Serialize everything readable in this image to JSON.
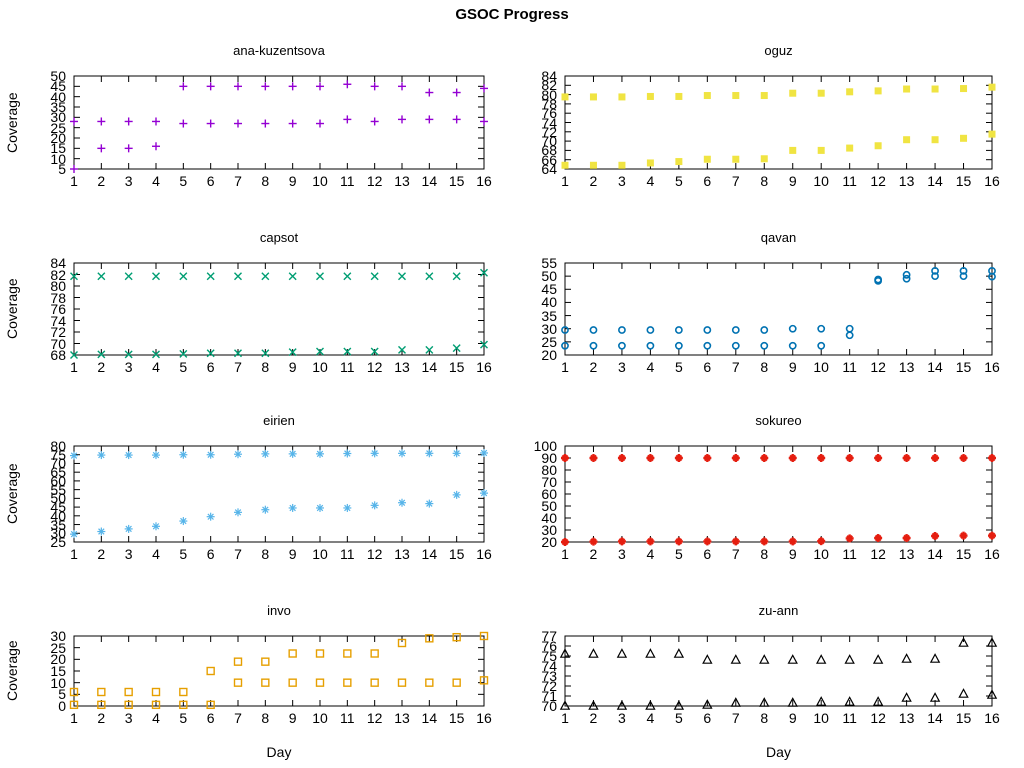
{
  "title": "GSOC Progress",
  "axis": {
    "xlabel": "Day",
    "ylabel": "Coverage"
  },
  "chart_data": [
    {
      "type": "scatter",
      "title": "ana-kuzentsova",
      "marker": "plus",
      "color": "#9400D3",
      "xlabel": "",
      "ylabel": "Coverage",
      "xlim": [
        1,
        16
      ],
      "ylim": [
        5,
        50
      ],
      "xticks": [
        1,
        2,
        3,
        4,
        5,
        6,
        7,
        8,
        9,
        10,
        11,
        12,
        13,
        14,
        15,
        16
      ],
      "yticks": [
        5,
        10,
        15,
        20,
        25,
        30,
        35,
        40,
        45,
        50
      ],
      "x": [
        1,
        2,
        3,
        4,
        5,
        6,
        7,
        8,
        9,
        10,
        11,
        12,
        13,
        14,
        15,
        16
      ],
      "series": [
        [
          5,
          15,
          15,
          16,
          45,
          45,
          45,
          45,
          45,
          45,
          46,
          45,
          45,
          42,
          42,
          44
        ],
        [
          28,
          28,
          28,
          28,
          27,
          27,
          27,
          27,
          27,
          27,
          29,
          28,
          29,
          29,
          29,
          28
        ]
      ],
      "grid": false,
      "legend": "none"
    },
    {
      "type": "scatter",
      "title": "oguz",
      "marker": "square-filled",
      "color": "#F0E442",
      "xlabel": "",
      "ylabel": "",
      "xlim": [
        1,
        16
      ],
      "ylim": [
        64,
        84
      ],
      "xticks": [
        1,
        2,
        3,
        4,
        5,
        6,
        7,
        8,
        9,
        10,
        11,
        12,
        13,
        14,
        15,
        16
      ],
      "yticks": [
        64,
        66,
        68,
        70,
        72,
        74,
        76,
        78,
        80,
        82,
        84
      ],
      "x": [
        1,
        2,
        3,
        4,
        5,
        6,
        7,
        8,
        9,
        10,
        11,
        12,
        13,
        14,
        15,
        16
      ],
      "series": [
        [
          79.5,
          79.5,
          79.5,
          79.6,
          79.6,
          79.8,
          79.8,
          79.8,
          80.3,
          80.3,
          80.6,
          80.8,
          81.2,
          81.2,
          81.3,
          81.6
        ],
        [
          64.8,
          64.8,
          64.8,
          65.3,
          65.6,
          66.1,
          66.1,
          66.2,
          68,
          68,
          68.5,
          69,
          70.3,
          70.3,
          70.6,
          71.5
        ]
      ],
      "grid": false,
      "legend": "none"
    },
    {
      "type": "scatter",
      "title": "capsot",
      "marker": "cross",
      "color": "#009E73",
      "xlabel": "",
      "ylabel": "Coverage",
      "xlim": [
        1,
        16
      ],
      "ylim": [
        68,
        84
      ],
      "xticks": [
        1,
        2,
        3,
        4,
        5,
        6,
        7,
        8,
        9,
        10,
        11,
        12,
        13,
        14,
        15,
        16
      ],
      "yticks": [
        68,
        70,
        72,
        74,
        76,
        78,
        80,
        82,
        84
      ],
      "x": [
        1,
        2,
        3,
        4,
        5,
        6,
        7,
        8,
        9,
        10,
        11,
        12,
        13,
        14,
        15,
        16
      ],
      "series": [
        [
          81.7,
          81.7,
          81.7,
          81.7,
          81.7,
          81.7,
          81.7,
          81.7,
          81.7,
          81.7,
          81.7,
          81.7,
          81.7,
          81.7,
          81.7,
          82.3
        ],
        [
          68,
          68.1,
          68.1,
          68.1,
          68.2,
          68.3,
          68.3,
          68.3,
          68.5,
          68.6,
          68.6,
          68.6,
          68.9,
          68.9,
          69.2,
          69.8
        ]
      ],
      "grid": false,
      "legend": "none"
    },
    {
      "type": "scatter",
      "title": "qavan",
      "marker": "circle-open",
      "color": "#0072B2",
      "xlabel": "",
      "ylabel": "",
      "xlim": [
        1,
        16
      ],
      "ylim": [
        20,
        55
      ],
      "xticks": [
        1,
        2,
        3,
        4,
        5,
        6,
        7,
        8,
        9,
        10,
        11,
        12,
        13,
        14,
        15,
        16
      ],
      "yticks": [
        20,
        25,
        30,
        35,
        40,
        45,
        50,
        55
      ],
      "x": [
        1,
        2,
        3,
        4,
        5,
        6,
        7,
        8,
        9,
        10,
        11,
        12,
        13,
        14,
        15,
        16
      ],
      "series": [
        [
          29.5,
          29.5,
          29.5,
          29.5,
          29.5,
          29.5,
          29.5,
          29.5,
          30,
          30,
          30,
          48.7,
          50.5,
          52,
          52,
          52
        ],
        [
          23.5,
          23.5,
          23.5,
          23.5,
          23.5,
          23.5,
          23.5,
          23.5,
          23.5,
          23.5,
          27.5,
          48.2,
          49,
          50,
          50,
          49.8
        ]
      ],
      "grid": false,
      "legend": "none"
    },
    {
      "type": "scatter",
      "title": "eirien",
      "marker": "asterisk",
      "color": "#56B4E9",
      "xlabel": "",
      "ylabel": "Coverage",
      "xlim": [
        1,
        16
      ],
      "ylim": [
        25,
        80
      ],
      "xticks": [
        1,
        2,
        3,
        4,
        5,
        6,
        7,
        8,
        9,
        10,
        11,
        12,
        13,
        14,
        15,
        16
      ],
      "yticks": [
        25,
        30,
        35,
        40,
        45,
        50,
        55,
        60,
        65,
        70,
        75,
        80
      ],
      "x": [
        1,
        2,
        3,
        4,
        5,
        6,
        7,
        8,
        9,
        10,
        11,
        12,
        13,
        14,
        15,
        16
      ],
      "series": [
        [
          74.5,
          74.8,
          74.8,
          74.8,
          75,
          75,
          75.3,
          75.5,
          75.5,
          75.5,
          75.7,
          75.8,
          75.8,
          75.8,
          75.8,
          76
        ],
        [
          29.5,
          31,
          32.5,
          34,
          37,
          39.5,
          42,
          43.5,
          44.5,
          44.5,
          44.5,
          46,
          47.5,
          47,
          52,
          53
        ]
      ],
      "grid": false,
      "legend": "none"
    },
    {
      "type": "scatter",
      "title": "sokureo",
      "marker": "star-filled",
      "color": "#E51E10",
      "xlabel": "",
      "ylabel": "",
      "xlim": [
        1,
        16
      ],
      "ylim": [
        20,
        100
      ],
      "xticks": [
        1,
        2,
        3,
        4,
        5,
        6,
        7,
        8,
        9,
        10,
        11,
        12,
        13,
        14,
        15,
        16
      ],
      "yticks": [
        20,
        30,
        40,
        50,
        60,
        70,
        80,
        90,
        100
      ],
      "x": [
        1,
        2,
        3,
        4,
        5,
        6,
        7,
        8,
        9,
        10,
        11,
        12,
        13,
        14,
        15,
        16
      ],
      "series": [
        [
          90,
          90,
          90,
          90,
          90,
          90,
          90,
          90,
          90,
          90,
          90,
          90,
          90,
          90,
          90,
          90
        ],
        [
          20,
          20.3,
          20.5,
          20.5,
          20.5,
          20.5,
          20.5,
          20.5,
          20.5,
          20.7,
          23,
          23.3,
          23.3,
          25,
          25.3,
          25.3
        ]
      ],
      "grid": false,
      "legend": "none"
    },
    {
      "type": "scatter",
      "title": "invo",
      "marker": "square-open",
      "color": "#E69F00",
      "xlabel": "Day",
      "ylabel": "Coverage",
      "xlim": [
        1,
        16
      ],
      "ylim": [
        0,
        30
      ],
      "xticks": [
        1,
        2,
        3,
        4,
        5,
        6,
        7,
        8,
        9,
        10,
        11,
        12,
        13,
        14,
        15,
        16
      ],
      "yticks": [
        0,
        5,
        10,
        15,
        20,
        25,
        30
      ],
      "x": [
        1,
        2,
        3,
        4,
        5,
        6,
        7,
        8,
        9,
        10,
        11,
        12,
        13,
        14,
        15,
        16
      ],
      "series": [
        [
          6,
          6,
          6,
          6,
          6,
          15,
          19,
          19,
          22.5,
          22.5,
          22.5,
          22.5,
          27,
          29,
          29.5,
          30
        ],
        [
          0.5,
          0.5,
          0.5,
          0.5,
          0.5,
          0.5,
          10,
          10,
          10,
          10,
          10,
          10,
          10,
          10,
          10,
          11
        ]
      ],
      "grid": false,
      "legend": "none"
    },
    {
      "type": "scatter",
      "title": "zu-ann",
      "marker": "triangle-open",
      "color": "#000000",
      "xlabel": "Day",
      "ylabel": "",
      "xlim": [
        1,
        16
      ],
      "ylim": [
        70,
        77
      ],
      "xticks": [
        1,
        2,
        3,
        4,
        5,
        6,
        7,
        8,
        9,
        10,
        11,
        12,
        13,
        14,
        15,
        16
      ],
      "yticks": [
        70,
        71,
        72,
        73,
        74,
        75,
        76,
        77
      ],
      "x": [
        1,
        2,
        3,
        4,
        5,
        6,
        7,
        8,
        9,
        10,
        11,
        12,
        13,
        14,
        15,
        16
      ],
      "series": [
        [
          75.2,
          75.2,
          75.2,
          75.2,
          75.2,
          74.6,
          74.6,
          74.6,
          74.6,
          74.6,
          74.6,
          74.6,
          74.7,
          74.7,
          76.3,
          76.3
        ],
        [
          70,
          70,
          70,
          70,
          70,
          70.1,
          70.3,
          70.3,
          70.3,
          70.4,
          70.4,
          70.4,
          70.8,
          70.8,
          71.2,
          71.1
        ]
      ],
      "grid": false,
      "legend": "none"
    }
  ]
}
